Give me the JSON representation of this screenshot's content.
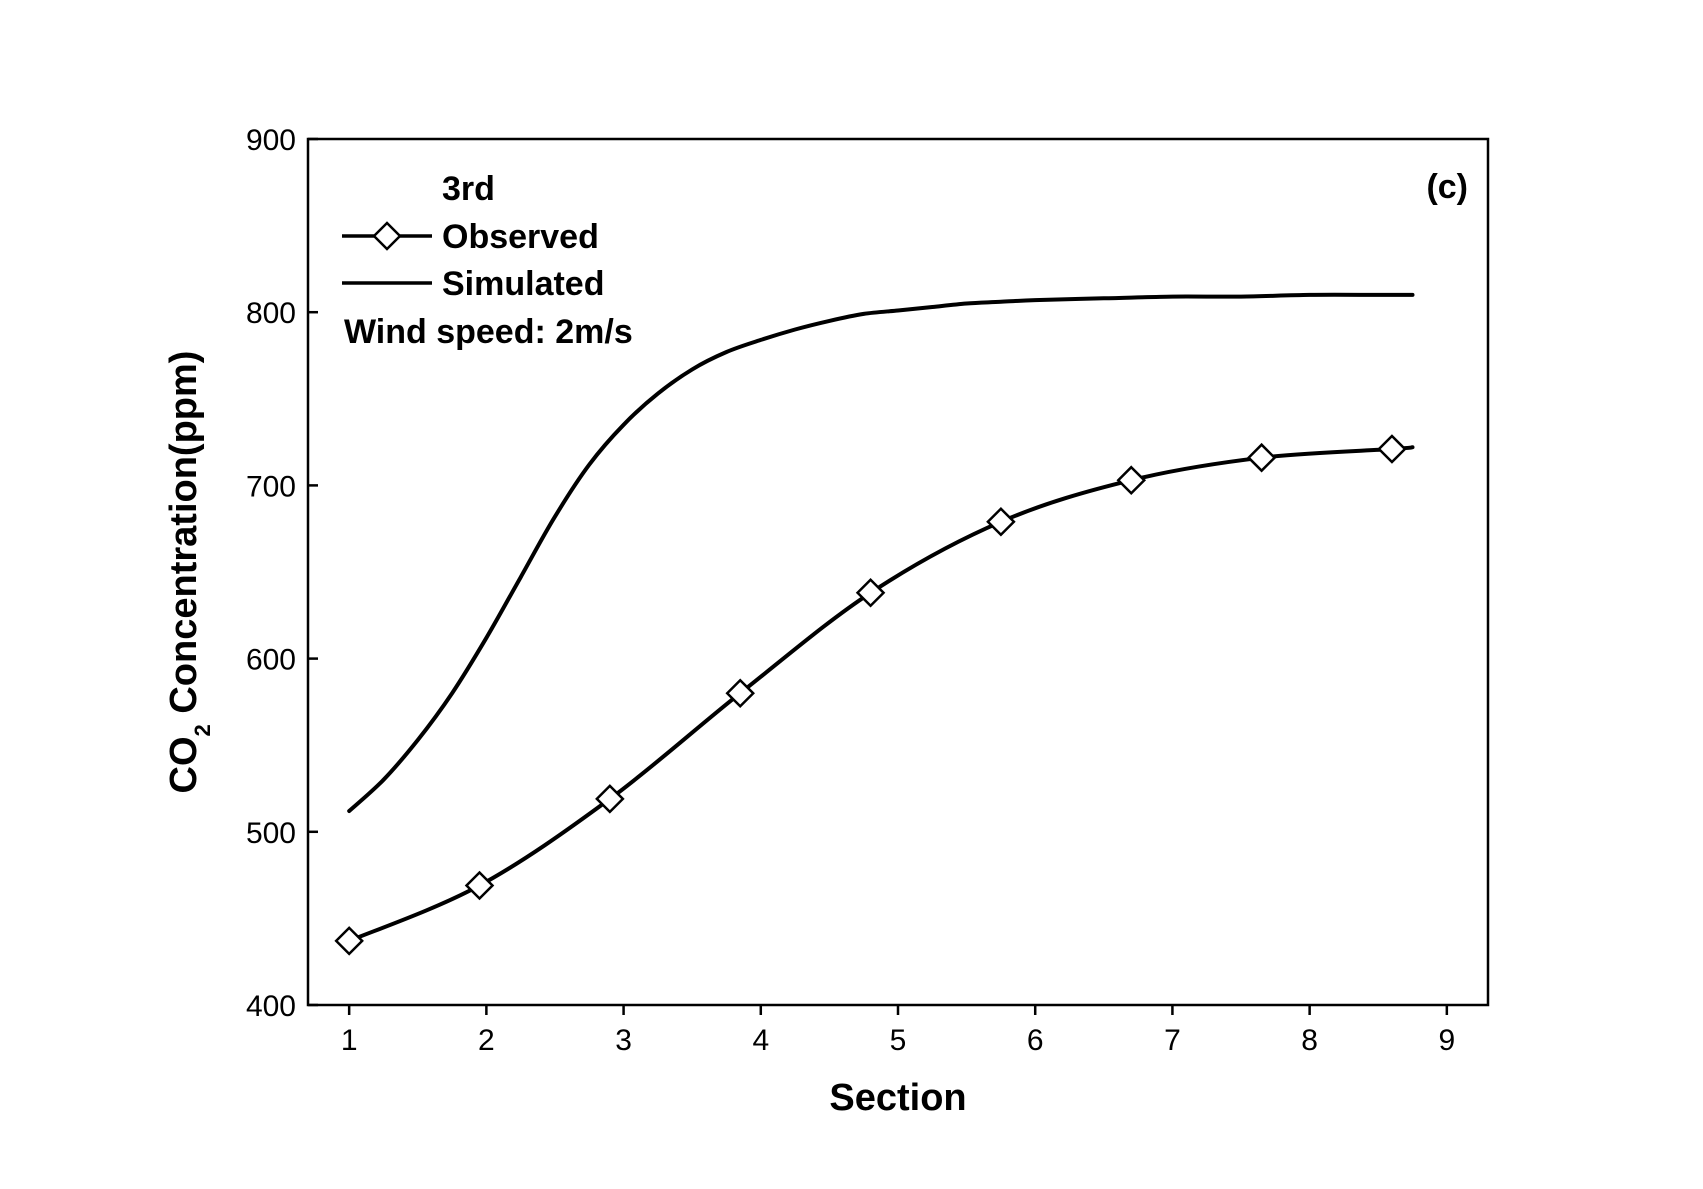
{
  "chart_data": {
    "type": "line",
    "panel_label": "(c)",
    "xlabel": "Section",
    "ylabel": {
      "prefix": "CO",
      "subscript": "2",
      "suffix": " Concentration(ppm)"
    },
    "xlim": [
      0.7,
      9.3
    ],
    "ylim": [
      400,
      900
    ],
    "xticks": [
      "1",
      "2",
      "3",
      "4",
      "5",
      "6",
      "7",
      "8",
      "9"
    ],
    "yticks": [
      "400",
      "500",
      "600",
      "700",
      "800",
      "900"
    ],
    "legend": {
      "position": "top-left",
      "header": "3rd",
      "note": "Wind speed: 2m/s"
    },
    "series": [
      {
        "name": "Observed",
        "marker": "diamond",
        "x": [
          1.0,
          1.95,
          2.9,
          3.85,
          4.8,
          5.75,
          6.7,
          7.65,
          8.6
        ],
        "values": [
          437,
          469,
          519,
          580,
          638,
          679,
          703,
          716,
          721
        ],
        "line_end": {
          "x": 8.75,
          "y": 722
        }
      },
      {
        "name": "Simulated",
        "marker": "none",
        "x": [
          1.0,
          1.25,
          1.5,
          1.75,
          2.0,
          2.25,
          2.5,
          2.75,
          3.0,
          3.25,
          3.5,
          3.75,
          4.0,
          4.25,
          4.5,
          4.75,
          5.0,
          5.25,
          5.5,
          5.75,
          6.0,
          6.5,
          7.0,
          7.5,
          8.0,
          8.5,
          8.75
        ],
        "values": [
          512,
          530,
          553,
          580,
          612,
          647,
          682,
          712,
          735,
          753,
          767,
          777,
          784,
          790,
          795,
          799,
          801,
          803,
          805,
          806,
          807,
          808,
          809,
          809,
          810,
          810,
          810
        ]
      }
    ],
    "colors": {
      "line": "#000000",
      "marker_fill": "#ffffff",
      "background": "#ffffff"
    }
  }
}
